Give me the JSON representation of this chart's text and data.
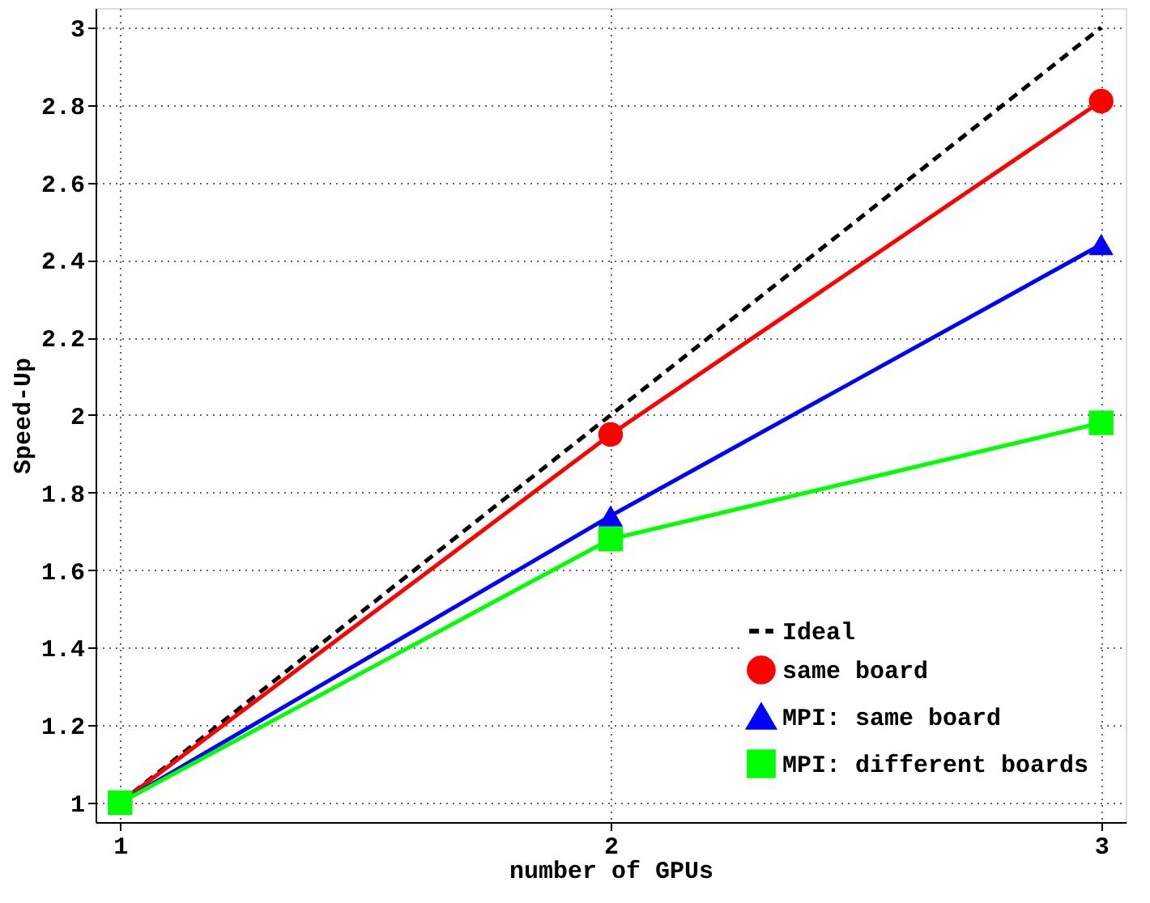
{
  "chart_data": {
    "type": "line",
    "xlabel": "number of GPUs",
    "ylabel": "Speed-Up",
    "x": [
      1,
      2,
      3
    ],
    "xlim": [
      0.95,
      3.05
    ],
    "xticks": [
      1,
      2,
      3
    ],
    "ylim": [
      0.95,
      3.05
    ],
    "yticks": [
      1,
      1.2,
      1.4,
      1.6,
      1.8,
      2,
      2.2,
      2.4,
      2.6,
      2.8,
      3
    ],
    "grid": true,
    "legend": "bottom right",
    "series": [
      {
        "name": "Ideal",
        "color": "#000000",
        "values": [
          1,
          2,
          3
        ],
        "line_style": "dashed",
        "marker": "none"
      },
      {
        "name": "same board",
        "color": "#ff0000",
        "values": [
          1,
          1.95,
          2.81
        ],
        "line_style": "solid",
        "marker": "circle"
      },
      {
        "name": "MPI: same board",
        "color": "#0000ff",
        "values": [
          1,
          1.74,
          2.44
        ],
        "line_style": "solid",
        "marker": "triangle"
      },
      {
        "name": "MPI: different boards",
        "color": "#00ff00",
        "values": [
          1,
          1.68,
          1.98
        ],
        "line_style": "solid",
        "marker": "square"
      }
    ]
  }
}
